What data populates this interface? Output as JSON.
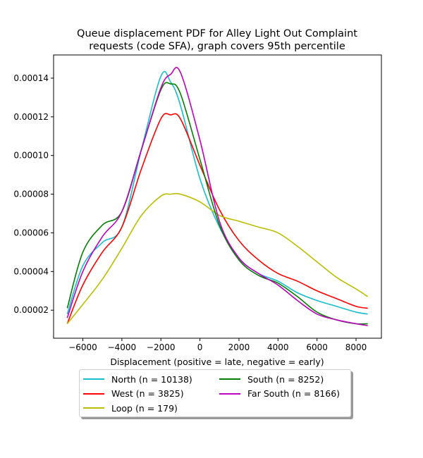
{
  "chart_data": {
    "type": "line",
    "title": "Queue displacement PDF for Alley Light Out Complaint\nrequests (code SFA), graph covers 95th percentile",
    "title_lines": [
      "Queue displacement PDF for Alley Light Out Complaint",
      "requests (code SFA), graph covers 95th percentile"
    ],
    "xlabel": "Displacement (positive = late, negative = early)",
    "ylabel": "",
    "xlim": [
      -7500,
      9300
    ],
    "ylim": [
      5.5e-06,
      0.000152
    ],
    "xticks": [
      -6000,
      -4000,
      -2000,
      0,
      2000,
      4000,
      6000,
      8000
    ],
    "xtick_labels": [
      "−6000",
      "−4000",
      "−2000",
      "0",
      "2000",
      "4000",
      "6000",
      "8000"
    ],
    "yticks": [
      2e-05,
      4e-05,
      6e-05,
      8e-05,
      0.0001,
      0.00012,
      0.00014
    ],
    "ytick_labels": [
      "0.00002",
      "0.00004",
      "0.00006",
      "0.00008",
      "0.00010",
      "0.00012",
      "0.00014"
    ],
    "grid": false,
    "legend_placement": "below",
    "x": [
      -6800,
      -6000,
      -5000,
      -4000,
      -3000,
      -2000,
      -1500,
      -1000,
      0,
      1000,
      2000,
      3000,
      4000,
      5000,
      6000,
      7000,
      8000,
      8600
    ],
    "series": [
      {
        "name": "North (n = 10138)",
        "color": "#17becf",
        "values": [
          1.8e-05,
          4.3e-05,
          5.5e-05,
          6.3e-05,
          0.000103,
          0.000141,
          0.000138,
          0.000126,
          8.8e-05,
          6.3e-05,
          4.7e-05,
          3.9e-05,
          3.5e-05,
          2.9e-05,
          2.5e-05,
          2.2e-05,
          1.9e-05,
          1.8e-05
        ]
      },
      {
        "name": "West (n = 3825)",
        "color": "#ff0000",
        "values": [
          1.3e-05,
          3.3e-05,
          5e-05,
          6.3e-05,
          9.3e-05,
          0.000119,
          0.000121,
          0.000119,
          9.5e-05,
          7.2e-05,
          5.6e-05,
          4.6e-05,
          3.9e-05,
          3.5e-05,
          3e-05,
          2.6e-05,
          2.2e-05,
          2.1e-05
        ]
      },
      {
        "name": "Loop (n = 179)",
        "color": "#bcbd00",
        "values": [
          1.3e-05,
          2.3e-05,
          3.6e-05,
          5.2e-05,
          6.9e-05,
          7.9e-05,
          8e-05,
          8e-05,
          7.6e-05,
          6.9e-05,
          6.6e-05,
          6.3e-05,
          6e-05,
          5.3e-05,
          4.5e-05,
          3.7e-05,
          3.1e-05,
          2.7e-05
        ]
      },
      {
        "name": "South (n = 8252)",
        "color": "#008000",
        "values": [
          2.1e-05,
          5e-05,
          6.4e-05,
          7.1e-05,
          0.000103,
          0.000134,
          0.000137,
          0.000132,
          9.8e-05,
          6.4e-05,
          4.6e-05,
          3.8e-05,
          3.4e-05,
          2.7e-05,
          1.9e-05,
          1.5e-05,
          1.3e-05,
          1.3e-05
        ]
      },
      {
        "name": "Far South (n = 8166)",
        "color": "#bf00bf",
        "values": [
          1.6e-05,
          4e-05,
          5.8e-05,
          7.1e-05,
          0.000103,
          0.000135,
          0.000142,
          0.000143,
          0.000108,
          6.6e-05,
          4.7e-05,
          3.9e-05,
          3.3e-05,
          2.5e-05,
          1.8e-05,
          1.5e-05,
          1.3e-05,
          1.2e-05
        ]
      }
    ]
  }
}
